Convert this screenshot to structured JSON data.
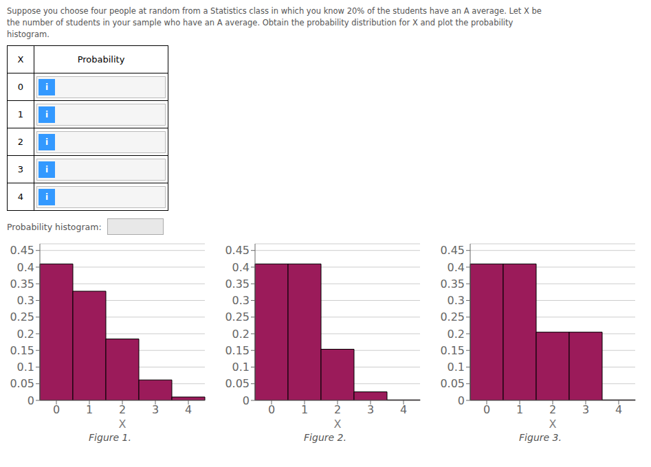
{
  "question": [
    "Suppose you choose four people at random from a Statistics class in which you know 20% of the students have an A average. Let X be",
    "the number of students in your sample who have an A average. Obtain the probability distribution for X and plot the probability",
    "histogram."
  ],
  "table": {
    "headers": [
      "X",
      "Probability"
    ],
    "rows": [
      0,
      1,
      2,
      3,
      4
    ],
    "button_label": "i",
    "button_color": "#3399FF"
  },
  "prob_hist_text": "Probability histogram:",
  "chart_data": [
    {
      "type": "bar",
      "title": "Figure 1.",
      "xlabel": "X",
      "categories": [
        0,
        1,
        2,
        3,
        4
      ],
      "values": [
        0.4096,
        0.3277,
        0.1843,
        0.0614,
        0.0102
      ],
      "color": "#9B1B5A",
      "ylim": [
        0,
        0.47
      ],
      "yticks": [
        0,
        0.05,
        0.1,
        0.15,
        0.2,
        0.25,
        0.3,
        0.35,
        0.4,
        0.45
      ],
      "grid": true
    },
    {
      "type": "bar",
      "title": "Figure 2.",
      "xlabel": "X",
      "categories": [
        0,
        1,
        2,
        3,
        4
      ],
      "values": [
        0.4096,
        0.4096,
        0.1536,
        0.0256,
        0.0016
      ],
      "color": "#9B1B5A",
      "ylim": [
        0,
        0.47
      ],
      "yticks": [
        0,
        0.05,
        0.1,
        0.15,
        0.2,
        0.25,
        0.3,
        0.35,
        0.4,
        0.45
      ],
      "grid": true
    },
    {
      "type": "bar",
      "title": "Figure 3.",
      "xlabel": "X",
      "categories": [
        0,
        1,
        2,
        3,
        4
      ],
      "values": [
        0.4096,
        0.4096,
        0.2048,
        0.2048,
        0.0016
      ],
      "color": "#9B1B5A",
      "ylim": [
        0,
        0.47
      ],
      "yticks": [
        0,
        0.05,
        0.1,
        0.15,
        0.2,
        0.25,
        0.3,
        0.35,
        0.4,
        0.45
      ],
      "grid": true
    }
  ]
}
